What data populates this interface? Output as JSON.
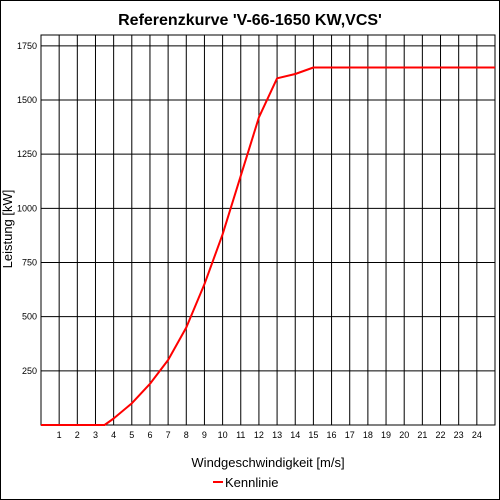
{
  "chart_data": {
    "type": "line",
    "title": "Referenzkurve 'V-66-1650 KW,VCS'",
    "xlabel": "Windgeschwindigkeit [m/s]",
    "ylabel": "Leistung [kW]",
    "xlim": [
      0,
      25
    ],
    "ylim": [
      0,
      1800
    ],
    "x_ticks": [
      1,
      2,
      3,
      4,
      5,
      6,
      7,
      8,
      9,
      10,
      11,
      12,
      13,
      14,
      15,
      16,
      17,
      18,
      19,
      20,
      21,
      22,
      23,
      24
    ],
    "y_ticks": [
      250,
      500,
      750,
      1000,
      1250,
      1500,
      1750
    ],
    "grid": true,
    "legend_position": "bottom-center",
    "series": [
      {
        "name": "Kennlinie",
        "color": "#ff0000",
        "x": [
          0,
          3.5,
          4,
          5,
          6,
          7,
          8,
          9,
          10,
          11,
          12,
          13,
          14,
          15,
          16,
          17,
          18,
          19,
          20,
          21,
          22,
          23,
          24,
          25
        ],
        "y": [
          0,
          0,
          30,
          100,
          190,
          300,
          450,
          650,
          880,
          1150,
          1420,
          1600,
          1620,
          1650,
          1650,
          1650,
          1650,
          1650,
          1650,
          1650,
          1650,
          1650,
          1650,
          1650
        ]
      }
    ]
  }
}
